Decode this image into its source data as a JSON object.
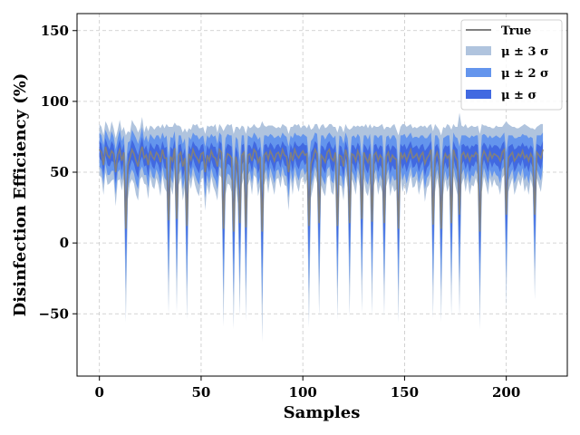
{
  "chart_data": {
    "type": "area",
    "title": "",
    "xlabel": "Samples",
    "ylabel": "Disinfection Efficiency (%)",
    "xlim": [
      -11,
      230
    ],
    "ylim": [
      -94,
      162
    ],
    "xticks": [
      0,
      50,
      100,
      150,
      200
    ],
    "yticks": [
      -50,
      0,
      50,
      100,
      150
    ],
    "grid": true,
    "legend_position": "top-right",
    "n_samples": 219,
    "colors": {
      "true": "#808080",
      "band3": "#b0c4de",
      "band2": "#6495ed",
      "band1": "#4169e1"
    },
    "series": [
      {
        "key": "true",
        "name": "True",
        "kind": "line"
      },
      {
        "key": "band3",
        "name": "μ ± 3 σ",
        "kind": "band",
        "sigma": 3
      },
      {
        "key": "band2",
        "name": "μ ± 2 σ",
        "kind": "band",
        "sigma": 2
      },
      {
        "key": "band1",
        "name": "μ ±  σ",
        "kind": "band",
        "sigma": 1
      }
    ],
    "mean": [
      66,
      64,
      55,
      68,
      62,
      60,
      65,
      63,
      50,
      62,
      66,
      58,
      64,
      10,
      55,
      60,
      66,
      63,
      58,
      54,
      63,
      68,
      60,
      62,
      55,
      65,
      61,
      59,
      64,
      62,
      57,
      66,
      60,
      60,
      16,
      61,
      58,
      67,
      17,
      62,
      64,
      54,
      60,
      12,
      63,
      59,
      66,
      62,
      60,
      57,
      63,
      64,
      50,
      62,
      58,
      65,
      61,
      60,
      54,
      66,
      64,
      10,
      58,
      63,
      62,
      60,
      8,
      61,
      55,
      14,
      62,
      64,
      11,
      62,
      63,
      58,
      66,
      64,
      57,
      61,
      8,
      62,
      64,
      59,
      65,
      62,
      58,
      63,
      64,
      60,
      66,
      62,
      61,
      50,
      64,
      58,
      66,
      62,
      60,
      63,
      65,
      62,
      63,
      12,
      56,
      60,
      66,
      63,
      14,
      62,
      60,
      57,
      64,
      66,
      60,
      58,
      64,
      12,
      62,
      61,
      54,
      66,
      60,
      14,
      63,
      62,
      58,
      65,
      61,
      17,
      64,
      60,
      57,
      63,
      15,
      62,
      64,
      58,
      62,
      60,
      14,
      61,
      64,
      57,
      62,
      60,
      59,
      10,
      64,
      60,
      63,
      58,
      62,
      66,
      60,
      61,
      63,
      58,
      62,
      64,
      56,
      60,
      62,
      66,
      13,
      60,
      64,
      59,
      10,
      58,
      63,
      60,
      62,
      14,
      66,
      61,
      58,
      20,
      62,
      64,
      60,
      63,
      58,
      62,
      61,
      64,
      62,
      8,
      60,
      65,
      62,
      58,
      64,
      60,
      63,
      62,
      61,
      58,
      64,
      66,
      20,
      60,
      62,
      64,
      58,
      60,
      63,
      61,
      65,
      60,
      62,
      58,
      63,
      60,
      20,
      64,
      62,
      60,
      66
    ],
    "sigma": [
      6,
      6,
      7,
      6,
      7,
      6,
      7,
      6,
      8,
      6,
      7,
      7,
      6,
      22,
      8,
      6,
      7,
      7,
      8,
      8,
      6,
      7,
      6,
      7,
      8,
      6,
      7,
      7,
      6,
      7,
      8,
      6,
      7,
      8,
      22,
      7,
      8,
      6,
      22,
      7,
      6,
      8,
      7,
      22,
      6,
      7,
      6,
      7,
      8,
      8,
      6,
      6,
      9,
      7,
      8,
      6,
      7,
      8,
      8,
      6,
      6,
      23,
      8,
      7,
      7,
      8,
      23,
      7,
      9,
      22,
      7,
      6,
      22,
      7,
      6,
      8,
      6,
      6,
      8,
      7,
      26,
      7,
      6,
      8,
      6,
      7,
      8,
      6,
      6,
      7,
      6,
      7,
      7,
      9,
      6,
      8,
      6,
      7,
      8,
      6,
      6,
      7,
      6,
      24,
      8,
      7,
      6,
      7,
      22,
      7,
      8,
      8,
      6,
      6,
      8,
      8,
      6,
      22,
      7,
      7,
      8,
      6,
      7,
      22,
      6,
      7,
      8,
      6,
      7,
      22,
      6,
      8,
      8,
      7,
      22,
      7,
      6,
      8,
      7,
      8,
      22,
      7,
      6,
      8,
      7,
      8,
      7,
      22,
      6,
      8,
      7,
      8,
      7,
      6,
      7,
      7,
      6,
      8,
      7,
      6,
      9,
      7,
      7,
      6,
      22,
      8,
      6,
      7,
      22,
      8,
      6,
      8,
      7,
      22,
      6,
      7,
      8,
      24,
      7,
      6,
      8,
      6,
      8,
      7,
      7,
      6,
      7,
      23,
      8,
      6,
      7,
      8,
      6,
      7,
      6,
      7,
      7,
      8,
      6,
      6,
      22,
      8,
      7,
      6,
      8,
      7,
      6,
      7,
      6,
      8,
      7,
      8,
      6,
      7,
      20,
      6,
      7,
      8,
      6
    ]
  }
}
